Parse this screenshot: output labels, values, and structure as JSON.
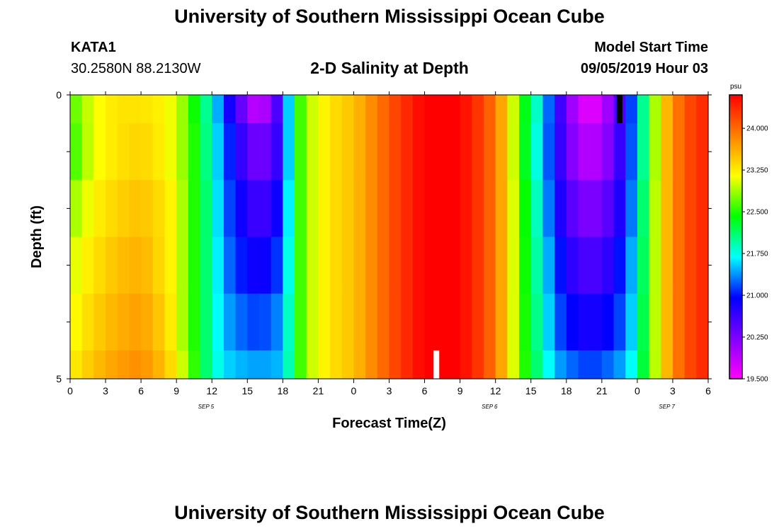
{
  "header": {
    "title": "University of Southern Mississippi Ocean Cube",
    "station_id": "KATA1",
    "station_coords": "30.2580N 88.2130W",
    "plot_title": "2-D Salinity at Depth",
    "model_start_label": "Model Start Time",
    "model_start_value": "09/05/2019 Hour 03"
  },
  "footer": {
    "title": "University of Southern Mississippi Ocean Cube"
  },
  "chart_data": {
    "type": "heatmap",
    "title": "2-D Salinity at Depth",
    "xlabel": "Forecast Time(Z)",
    "ylabel": "Depth (ft)",
    "x_tick_labels": [
      "0",
      "3",
      "6",
      "9",
      "12",
      "15",
      "18",
      "21",
      "0",
      "3",
      "6",
      "9",
      "12",
      "15",
      "18",
      "21",
      "0",
      "3",
      "6"
    ],
    "x_date_labels": [
      "SEP 5",
      "SEP 6",
      "SEP 7"
    ],
    "x_range_hours": [
      0,
      54
    ],
    "y_tick_labels": [
      "0",
      "5"
    ],
    "ylim": [
      0,
      5
    ],
    "y_inverted": true,
    "colorbar": {
      "unit": "psu",
      "tick_labels": [
        "19.500",
        "20.250",
        "21.000",
        "21.750",
        "22.500",
        "23.250",
        "24.000"
      ],
      "range": [
        19.5,
        24.6
      ],
      "colors": [
        "#ff00ff",
        "#8000ff",
        "#0000ff",
        "#00ffff",
        "#00ff00",
        "#ffff00",
        "#ff8000",
        "#ff0000"
      ]
    },
    "series": [
      {
        "layer": "0-0.5 ft",
        "hours": [
          0,
          2,
          4,
          6,
          8,
          9,
          10,
          11,
          12,
          13,
          14,
          16,
          18,
          19,
          20,
          22,
          24,
          26,
          28,
          30,
          31,
          32,
          33,
          34,
          35,
          36,
          37,
          38,
          40,
          41,
          42,
          43,
          44,
          45,
          46,
          47,
          48,
          49,
          50,
          51,
          52,
          53,
          54
        ],
        "values": [
          22.6,
          23.1,
          23.3,
          23.3,
          23.2,
          23.0,
          22.7,
          22.2,
          21.8,
          21.1,
          20.6,
          19.7,
          20.8,
          22.3,
          22.9,
          23.3,
          23.5,
          23.9,
          24.3,
          24.6,
          24.6,
          24.6,
          24.6,
          24.4,
          24.2,
          23.9,
          23.4,
          22.6,
          21.6,
          20.9,
          20.3,
          19.8,
          19.6,
          19.8,
          20.3,
          20.8,
          21.5,
          22.5,
          23.3,
          23.8,
          24.1,
          24.3,
          24.4
        ]
      },
      {
        "layer": "0.5-1.5 ft",
        "hours": [
          0,
          2,
          4,
          6,
          8,
          9,
          10,
          11,
          12,
          13,
          14,
          16,
          18,
          19,
          20,
          22,
          24,
          26,
          28,
          30,
          31,
          32,
          33,
          34,
          35,
          36,
          37,
          38,
          40,
          41,
          42,
          43,
          44,
          45,
          46,
          47,
          48,
          49,
          50,
          51,
          52,
          53,
          54
        ],
        "values": [
          22.5,
          23.1,
          23.3,
          23.4,
          23.2,
          23.0,
          22.7,
          22.3,
          21.8,
          21.3,
          20.8,
          20.2,
          20.8,
          22.3,
          22.9,
          23.3,
          23.5,
          23.9,
          24.3,
          24.6,
          24.6,
          24.6,
          24.6,
          24.4,
          24.2,
          23.9,
          23.4,
          22.6,
          21.5,
          20.9,
          20.4,
          20.0,
          19.9,
          20.0,
          20.4,
          20.9,
          21.5,
          22.5,
          23.3,
          23.8,
          24.1,
          24.3,
          24.4
        ]
      },
      {
        "layer": "1.5-2.5 ft",
        "hours": [
          0,
          2,
          4,
          6,
          8,
          9,
          10,
          11,
          12,
          13,
          14,
          16,
          18,
          19,
          20,
          22,
          24,
          26,
          28,
          30,
          31,
          32,
          33,
          34,
          35,
          36,
          37,
          38,
          40,
          41,
          42,
          43,
          44,
          45,
          46,
          47,
          48,
          49,
          50,
          51,
          52,
          53,
          54
        ],
        "values": [
          22.8,
          23.2,
          23.4,
          23.5,
          23.3,
          23.1,
          22.7,
          22.3,
          21.9,
          21.3,
          21.0,
          20.5,
          21.0,
          22.3,
          22.9,
          23.3,
          23.5,
          23.9,
          24.3,
          24.6,
          24.6,
          24.6,
          24.6,
          24.4,
          24.2,
          23.9,
          23.4,
          22.7,
          21.6,
          21.0,
          20.6,
          20.3,
          20.2,
          20.3,
          20.6,
          21.0,
          21.6,
          22.6,
          23.3,
          23.8,
          24.1,
          24.3,
          24.4
        ]
      },
      {
        "layer": "2.5-3.5 ft",
        "hours": [
          0,
          2,
          4,
          6,
          8,
          9,
          10,
          11,
          12,
          13,
          14,
          16,
          18,
          19,
          20,
          22,
          24,
          26,
          28,
          30,
          31,
          32,
          33,
          34,
          35,
          36,
          37,
          38,
          40,
          41,
          42,
          43,
          44,
          45,
          46,
          47,
          48,
          49,
          50,
          51,
          52,
          53,
          54
        ],
        "values": [
          23.0,
          23.3,
          23.5,
          23.6,
          23.3,
          23.1,
          22.7,
          22.3,
          21.9,
          21.4,
          21.1,
          20.8,
          21.2,
          22.3,
          22.9,
          23.3,
          23.5,
          23.9,
          24.3,
          24.6,
          24.6,
          24.6,
          24.6,
          24.4,
          24.2,
          23.9,
          23.4,
          22.7,
          21.7,
          21.2,
          20.8,
          20.6,
          20.5,
          20.6,
          20.8,
          21.2,
          21.7,
          22.6,
          23.3,
          23.8,
          24.1,
          24.3,
          24.4
        ]
      },
      {
        "layer": "3.5-4.5 ft",
        "hours": [
          0,
          2,
          4,
          6,
          8,
          9,
          10,
          11,
          12,
          13,
          14,
          16,
          18,
          19,
          20,
          22,
          24,
          26,
          28,
          30,
          31,
          32,
          33,
          34,
          35,
          36,
          37,
          38,
          40,
          41,
          42,
          43,
          44,
          45,
          46,
          47,
          48,
          49,
          50,
          51,
          52,
          53,
          54
        ],
        "values": [
          23.1,
          23.4,
          23.6,
          23.7,
          23.4,
          23.1,
          22.7,
          22.3,
          21.9,
          21.5,
          21.3,
          21.1,
          21.4,
          22.3,
          22.9,
          23.3,
          23.5,
          23.9,
          24.3,
          24.6,
          24.6,
          24.6,
          24.6,
          24.4,
          24.2,
          23.9,
          23.4,
          22.7,
          21.8,
          21.3,
          21.0,
          20.9,
          20.8,
          20.9,
          21.0,
          21.3,
          21.8,
          22.6,
          23.3,
          23.8,
          24.1,
          24.3,
          24.4
        ]
      },
      {
        "layer": "4.5-5 ft",
        "hours": [
          0,
          2,
          4,
          6,
          8,
          9,
          10,
          11,
          12,
          13,
          14,
          16,
          18,
          19,
          20,
          22,
          24,
          26,
          28,
          30,
          31,
          32,
          33,
          34,
          35,
          36,
          37,
          38,
          40,
          41,
          42,
          43,
          44,
          45,
          46,
          47,
          48,
          49,
          50,
          51,
          52,
          53,
          54
        ],
        "values": [
          23.2,
          23.5,
          23.7,
          23.8,
          23.5,
          23.2,
          22.8,
          22.3,
          21.9,
          21.6,
          21.5,
          21.4,
          21.5,
          22.3,
          22.9,
          23.3,
          23.5,
          23.9,
          24.3,
          24.6,
          24.6,
          24.6,
          24.6,
          24.4,
          24.2,
          23.9,
          23.4,
          22.7,
          21.9,
          21.5,
          21.3,
          21.2,
          21.1,
          21.2,
          21.3,
          21.5,
          21.9,
          22.6,
          23.3,
          23.8,
          24.1,
          24.3,
          24.4
        ]
      }
    ],
    "markers": [
      {
        "name": "black-marker",
        "color": "#000000",
        "hour": 46.5,
        "depth_from": 0,
        "depth_to": 0.5
      },
      {
        "name": "white-marker",
        "color": "#ffffff",
        "hour": 31,
        "depth_from": 4.5,
        "depth_to": 5
      }
    ]
  }
}
